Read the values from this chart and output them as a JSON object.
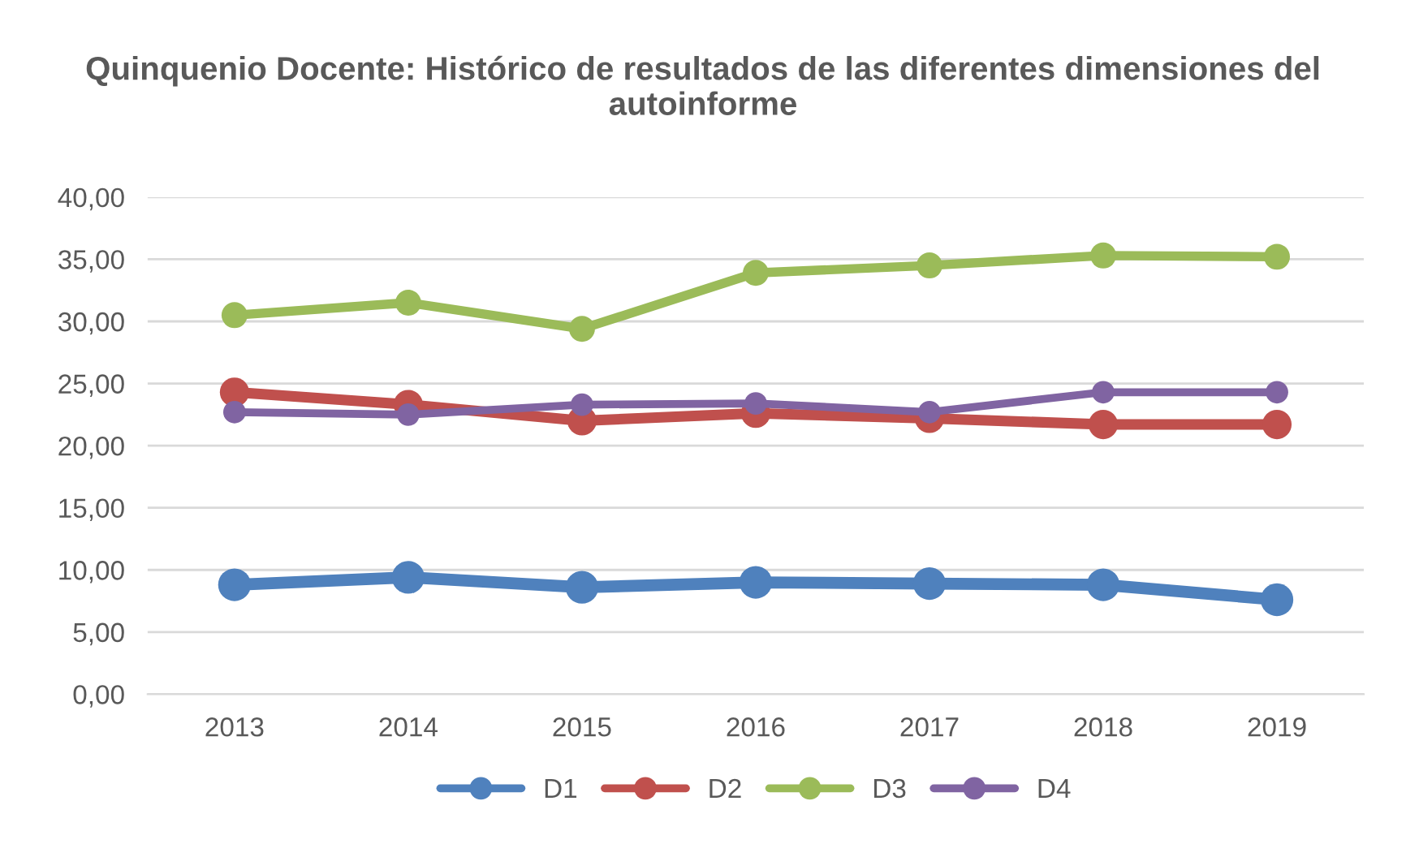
{
  "chart_data": {
    "type": "line",
    "title": "Quinquenio Docente: Histórico de resultados de las diferentes dimensiones del autoinforme",
    "categories": [
      "2013",
      "2014",
      "2015",
      "2016",
      "2017",
      "2018",
      "2019"
    ],
    "series": [
      {
        "name": "D1",
        "color": "#4f81bd",
        "values": [
          8.8,
          9.4,
          8.6,
          9.0,
          8.9,
          8.8,
          7.6
        ]
      },
      {
        "name": "D2",
        "color": "#c0504d",
        "values": [
          24.3,
          23.3,
          22.0,
          22.6,
          22.2,
          21.7,
          21.7
        ]
      },
      {
        "name": "D3",
        "color": "#9bbb59",
        "values": [
          30.5,
          31.5,
          29.4,
          33.9,
          34.5,
          35.3,
          35.2
        ]
      },
      {
        "name": "D4",
        "color": "#8064a2",
        "values": [
          22.7,
          22.5,
          23.3,
          23.4,
          22.7,
          24.3,
          24.3
        ]
      }
    ],
    "ylim": [
      0,
      40
    ],
    "yticks": [
      {
        "value": 0,
        "label": "0,00"
      },
      {
        "value": 5,
        "label": "5,00"
      },
      {
        "value": 10,
        "label": "10,00"
      },
      {
        "value": 15,
        "label": "15,00"
      },
      {
        "value": 20,
        "label": "20,00"
      },
      {
        "value": 25,
        "label": "25,00"
      },
      {
        "value": 30,
        "label": "30,00"
      },
      {
        "value": 35,
        "label": "35,00"
      },
      {
        "value": 40,
        "label": "40,00"
      }
    ],
    "grid": "y",
    "legend": "bottom",
    "marker": "circle",
    "line_style": "solid"
  }
}
